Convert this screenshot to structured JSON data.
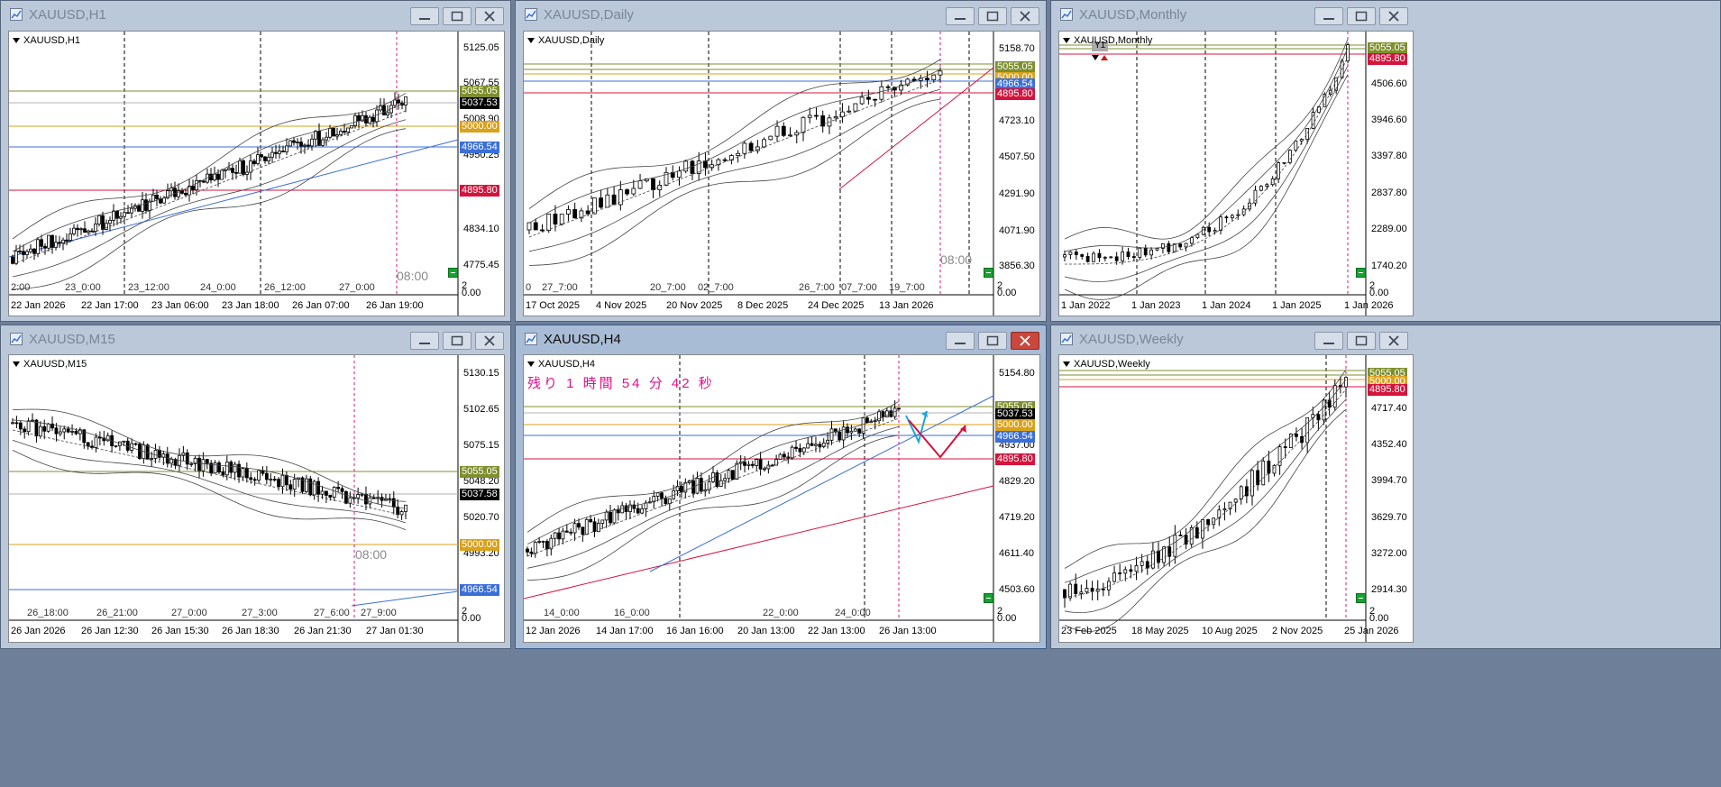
{
  "windows": {
    "h1": {
      "title": "XAUUSD,H1",
      "symbol": "XAUUSD,H1",
      "price_labels": [
        "5125.05",
        "5067.55",
        "5008.90",
        "4950.25",
        "4834.10",
        "4775.45"
      ],
      "tags": [
        "5055.05",
        "5037.53",
        "5000.00",
        "4966.54",
        "4895.80"
      ],
      "grid_labels": [
        "2:00",
        "23_0:00",
        "23_12:00",
        "24_0:00",
        "26_12:00",
        "27_0:00"
      ],
      "time_labels": [
        "22 Jan 2026",
        "22 Jan 17:00",
        "23 Jan 06:00",
        "23 Jan 18:00",
        "26 Jan 07:00",
        "26 Jan 19:00"
      ],
      "vline_label": "08:00",
      "scale": "2",
      "scale_sub": "0.00"
    },
    "daily": {
      "title": "XAUUSD,Daily",
      "symbol": "XAUUSD,Daily",
      "price_labels": [
        "5158.70",
        "4723.10",
        "4507.50",
        "4291.90",
        "4071.90",
        "3856.30"
      ],
      "tags": [
        "5055.05",
        "5000.00",
        "4966.54",
        "4895.80"
      ],
      "grid_labels": [
        "0",
        "27_7:00",
        "20_7:00",
        "02_7:00",
        "26_7:00",
        "07_7:00",
        "19_7:00"
      ],
      "time_labels": [
        "17 Oct 2025",
        "4 Nov 2025",
        "20 Nov 2025",
        "8 Dec 2025",
        "24 Dec 2025",
        "13 Jan 2026"
      ],
      "vline_label": "08:00",
      "scale": "2",
      "scale_sub": "0.00"
    },
    "monthly": {
      "title": "XAUUSD,Monthly",
      "symbol": "XAUUSD,Monthly",
      "price_labels": [
        "4506.60",
        "3946.60",
        "3397.80",
        "2837.80",
        "2289.00",
        "1740.20"
      ],
      "tags": [
        "5055.05",
        "4895.80"
      ],
      "marker": "Y1",
      "time_labels": [
        "1 Jan 2022",
        "1 Jan 2023",
        "1 Jan 2024",
        "1 Jan 2025",
        "1 Jan 2026"
      ],
      "scale": "2",
      "scale_sub": "0.00"
    },
    "m15": {
      "title": "XAUUSD,M15",
      "symbol": "XAUUSD,M15",
      "price_labels": [
        "5130.15",
        "5102.65",
        "5075.15",
        "5048.20",
        "5020.70",
        "4993.20"
      ],
      "tags": [
        "5055.05",
        "5037.58",
        "5000.00",
        "4966.54"
      ],
      "grid_labels": [
        "26_18:00",
        "26_21:00",
        "27_0:00",
        "27_3:00",
        "27_6:00",
        "27_9:00"
      ],
      "time_labels": [
        "26 Jan 2026",
        "26 Jan 12:30",
        "26 Jan 15:30",
        "26 Jan 18:30",
        "26 Jan 21:30",
        "27 Jan 01:30"
      ],
      "vline_label": "08:00",
      "scale": "2",
      "scale_sub": "0.00"
    },
    "h4": {
      "title": "XAUUSD,H4",
      "symbol": "XAUUSD,H4",
      "countdown": "残り 1 時間 54 分 42 秒",
      "price_labels": [
        "5154.80",
        "4937.00",
        "4829.20",
        "4719.20",
        "4611.40",
        "4503.60"
      ],
      "tags": [
        "5055.05",
        "5037.53",
        "5000.00",
        "4966.54",
        "4895.80"
      ],
      "grid_labels": [
        "14_0:00",
        "16_0:00",
        "22_0:00",
        "24_0:00"
      ],
      "time_labels": [
        "12 Jan 2026",
        "14 Jan 17:00",
        "16 Jan 16:00",
        "20 Jan 13:00",
        "22 Jan 13:00",
        "26 Jan 13:00"
      ],
      "scale": "2",
      "scale_sub": "0.00"
    },
    "weekly": {
      "title": "XAUUSD,Weekly",
      "symbol": "XAUUSD,Weekly",
      "price_labels": [
        "4717.40",
        "4352.40",
        "3994.70",
        "3629.70",
        "3272.00",
        "2914.30"
      ],
      "tags": [
        "5055.05",
        "5000.00",
        "4895.80"
      ],
      "time_labels": [
        "23 Feb 2025",
        "18 May 2025",
        "10 Aug 2025",
        "2 Nov 2025",
        "25 Jan 2026"
      ],
      "scale": "2",
      "scale_sub": "0.00"
    }
  },
  "colors": {
    "level_5055": "#7e8f2c",
    "level_5000": "#d9a21b",
    "level_4966": "#3b6fd8",
    "level_4895": "#d4143c",
    "current": "#000000",
    "session": "#e0108c"
  }
}
